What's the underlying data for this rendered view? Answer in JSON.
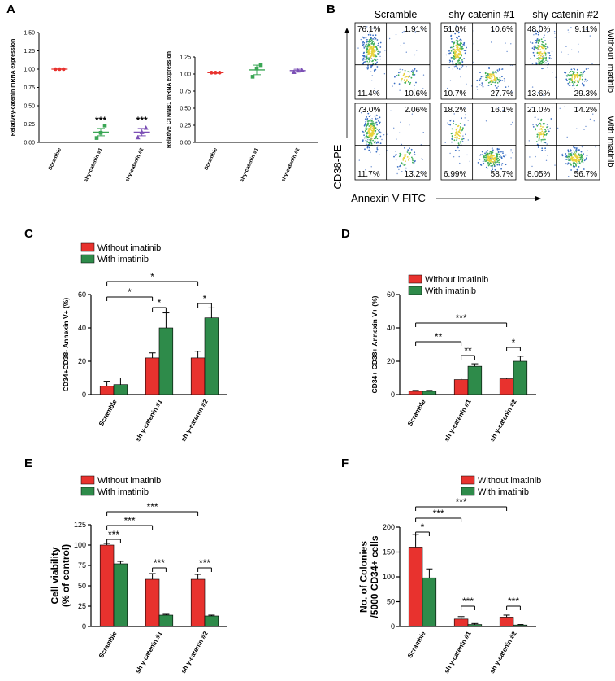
{
  "colors": {
    "without": "#e8322e",
    "with": "#2e8b4a",
    "scramble_dot": "#e8322e",
    "sh1_dot": "#3aa655",
    "sh2_dot": "#7b4fb5"
  },
  "figure_labels": {
    "a": "A",
    "b": "B",
    "c": "C",
    "d": "D",
    "e": "E",
    "f": "F"
  },
  "panel_b": {
    "columns": [
      "Scramble",
      "shγ-catenin #1",
      "shγ-catenin #2"
    ],
    "rows": [
      "Without imatinib",
      "With imatinib"
    ],
    "ylabel": "CD38-PE",
    "xlabel": "Annexin V-FITC",
    "quadrants": [
      [
        [
          "76.1%",
          "1.91%",
          "11.4%",
          "10.6%"
        ],
        [
          "51.0%",
          "10.6%",
          "10.7%",
          "27.7%"
        ],
        [
          "48.0%",
          "9.11%",
          "13.6%",
          "29.3%"
        ]
      ],
      [
        [
          "73.0%",
          "2.06%",
          "11.7%",
          "13.2%"
        ],
        [
          "18.2%",
          "16.1%",
          "6.99%",
          "58.7%"
        ],
        [
          "21.0%",
          "14.2%",
          "8.05%",
          "56.7%"
        ]
      ]
    ]
  },
  "chart_data": [
    {
      "panel": "A-left",
      "type": "scatter",
      "ylabel": "Relativeγ-catenin mRNA expression",
      "categories": [
        "Scramble",
        "shγ-catenin #1",
        "shγ-catenin #2"
      ],
      "ylim": [
        0,
        1.5
      ],
      "yticks": [
        "0.00",
        "0.25",
        "0.50",
        "0.75",
        "1.00",
        "1.25",
        "1.50"
      ],
      "means": [
        1.0,
        0.14,
        0.14
      ],
      "sem": [
        0.0,
        0.05,
        0.05
      ],
      "points": [
        [
          1.0,
          1.0,
          1.0
        ],
        [
          0.06,
          0.13,
          0.23
        ],
        [
          0.07,
          0.14,
          0.2
        ]
      ],
      "annotations": [
        "",
        "***",
        "***"
      ]
    },
    {
      "panel": "A-right",
      "type": "scatter",
      "ylabel": "Relative CTNNB1 mRNA expression",
      "categories": [
        "Scramble",
        "shγ-catenin #1",
        "shγ-catenin #2"
      ],
      "ylim": [
        0,
        1.25
      ],
      "yticks": [
        "0.00",
        "0.25",
        "0.50",
        "0.75",
        "1.00",
        "1.25"
      ],
      "means": [
        1.02,
        1.06,
        1.05
      ],
      "sem": [
        0.01,
        0.07,
        0.02
      ],
      "points": [
        [
          1.02,
          1.02,
          1.02
        ],
        [
          0.96,
          1.08,
          1.13
        ],
        [
          1.03,
          1.05,
          1.06
        ]
      ]
    },
    {
      "panel": "C",
      "type": "bar",
      "ylabel": "CD34+CD38- Annexin V+ (%)",
      "categories": [
        "Scramble",
        "sh γ-catenin #1",
        "sh γ-catenin #2"
      ],
      "ylim": [
        0,
        60
      ],
      "yticks": [
        "0",
        "20",
        "40",
        "60"
      ],
      "series": [
        {
          "name": "Without imatinib",
          "values": [
            5,
            22,
            22
          ],
          "err": [
            3,
            3,
            4
          ]
        },
        {
          "name": "With imatinib",
          "values": [
            6,
            40,
            46
          ],
          "err": [
            4,
            9,
            6
          ]
        }
      ],
      "brackets": [
        "*",
        "*",
        "*",
        "*"
      ]
    },
    {
      "panel": "D",
      "type": "bar",
      "ylabel": "CD34+ CD38+ Annexin V+ (%)",
      "categories": [
        "Scramble",
        "sh γ-catenin #1",
        "sh γ-catenin #2"
      ],
      "ylim": [
        0,
        60
      ],
      "yticks": [
        "0",
        "20",
        "40",
        "60"
      ],
      "series": [
        {
          "name": "Without imatinib",
          "values": [
            2,
            9,
            9.5
          ],
          "err": [
            0.5,
            1,
            0.5
          ]
        },
        {
          "name": "With imatinib",
          "values": [
            2,
            17,
            20
          ],
          "err": [
            0.5,
            1.5,
            3
          ]
        }
      ],
      "brackets": [
        "**",
        "***",
        "**",
        "*"
      ]
    },
    {
      "panel": "E",
      "type": "bar",
      "ylabel": "Cell viability\n(% of control)",
      "categories": [
        "Scramble",
        "sh γ-catenin #1",
        "sh γ-catenin #2"
      ],
      "ylim": [
        0,
        125
      ],
      "yticks": [
        "0",
        "25",
        "50",
        "75",
        "100",
        "125"
      ],
      "series": [
        {
          "name": "Without imatinib",
          "values": [
            100,
            58,
            58
          ],
          "err": [
            2,
            7,
            6
          ]
        },
        {
          "name": "With imatinib",
          "values": [
            77,
            14,
            13
          ],
          "err": [
            3,
            1,
            1
          ]
        }
      ],
      "brackets": [
        "***",
        "***",
        "***",
        "***",
        "***"
      ]
    },
    {
      "panel": "F",
      "type": "bar",
      "ylabel": "No. of Colonies\n/5000 CD34+ cells",
      "categories": [
        "Scramble",
        "sh γ-catenin #1",
        "sh γ-catenin #2"
      ],
      "ylim": [
        0,
        200
      ],
      "yticks": [
        "0",
        "50",
        "100",
        "150",
        "200"
      ],
      "series": [
        {
          "name": "Without imatinib",
          "values": [
            160,
            15,
            19
          ],
          "err": [
            25,
            5,
            4
          ]
        },
        {
          "name": "With imatinib",
          "values": [
            98,
            4,
            3
          ],
          "err": [
            18,
            2,
            1
          ]
        }
      ],
      "brackets": [
        "*",
        "***",
        "***",
        "***",
        "***"
      ]
    }
  ]
}
